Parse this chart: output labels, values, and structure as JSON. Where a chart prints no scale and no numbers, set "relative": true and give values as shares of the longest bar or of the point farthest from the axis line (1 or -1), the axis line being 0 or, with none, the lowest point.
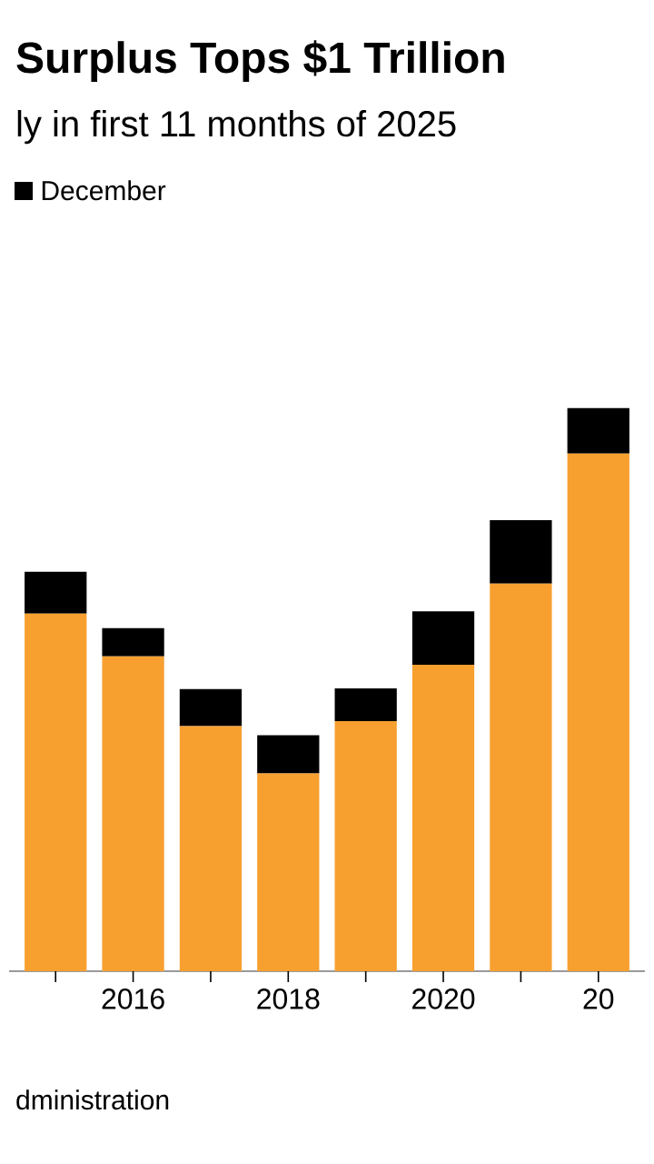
{
  "chart_data": {
    "type": "bar",
    "title": "Surplus Tops $1 Trillion",
    "subtitle": "ly in first 11 months of 2025",
    "categories": [
      null,
      "2016",
      null,
      "2018",
      null,
      "2020",
      null,
      "20"
    ],
    "stacked": true,
    "relative": true,
    "legend": "top left",
    "series": [
      {
        "color": "#f7a030",
        "values": [
          0.635,
          0.559,
          0.435,
          0.351,
          0.444,
          0.544,
          0.688,
          0.919
        ]
      },
      {
        "name": "December",
        "color": "#000000",
        "values": [
          0.074,
          0.05,
          0.066,
          0.068,
          0.058,
          0.095,
          0.113,
          0.081
        ]
      }
    ],
    "annotations": [
      "dministration"
    ]
  }
}
